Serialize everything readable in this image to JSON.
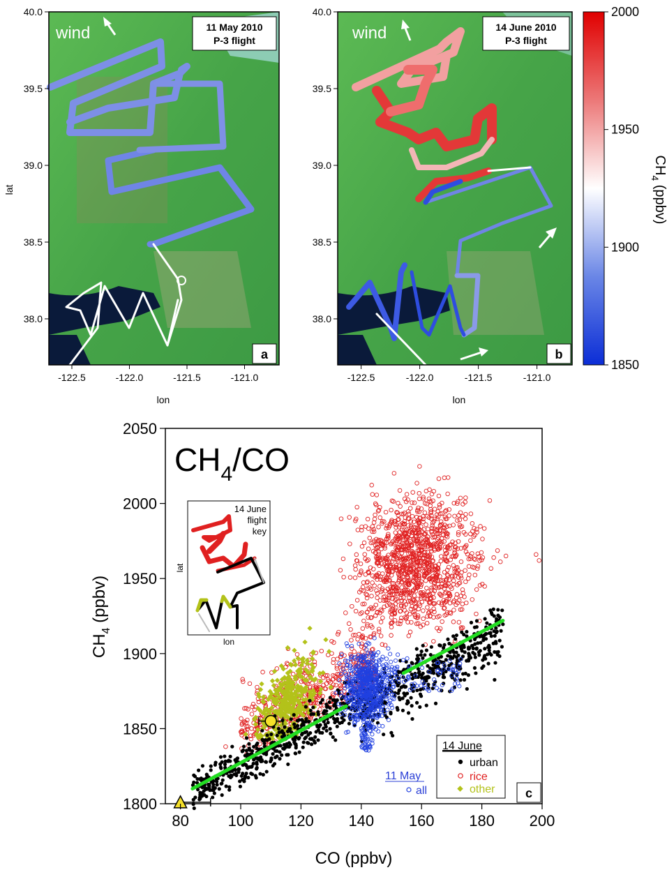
{
  "colors": {
    "ch4_scale": [
      "#0b2dd6",
      "#6a86e6",
      "#ffffff",
      "#ec7878",
      "#e00000"
    ],
    "map_green": "#4aa84a",
    "fit_line": "#22dd22",
    "urban": "#000000",
    "rice": "#e02020",
    "other": "#b3c21a",
    "all_may": "#2040e0",
    "may_legend_text": "#2a3fd6"
  },
  "panel_a": {
    "wind_label": "wind",
    "title_line1": "11 May 2010",
    "title_line2": "P-3 flight",
    "panel_letter": "a",
    "ylabel": "lat",
    "xlabel": "lon"
  },
  "panel_b": {
    "wind_label": "wind",
    "title_line1": "14 June 2010",
    "title_line2": "P-3 flight",
    "panel_letter": "b",
    "xlabel": "lon"
  },
  "colorbar": {
    "ticks": [
      "2000",
      "1950",
      "1900",
      "1850"
    ],
    "label_main": "CH",
    "label_sub": "4",
    "label_rest": " (ppbv)"
  },
  "maps_axes": {
    "yticks": [
      "40.0",
      "39.5",
      "39.0",
      "38.5",
      "38.0"
    ],
    "xticks": [
      "-122.5",
      "-122.0",
      "-121.5",
      "-121.0"
    ]
  },
  "panel_c": {
    "title_main": "CH",
    "title_sub": "4",
    "title_rest": "/CO",
    "panel_letter": "c",
    "inset": {
      "line1": "14 June",
      "line2": "flight",
      "line3": "key",
      "ylabel": "lat",
      "xlabel": "lon"
    },
    "legend_june": {
      "title": "14 June",
      "urban": "urban",
      "rice": "rice",
      "other": "other"
    },
    "legend_may": {
      "title": "11 May",
      "all": "all"
    }
  },
  "chart_data": [
    {
      "type": "scatter",
      "panel": "a",
      "xlabel": "lon",
      "ylabel": "lat",
      "xlim": [
        -122.7,
        -120.7
      ],
      "ylim": [
        37.7,
        40.0
      ],
      "xticks": [
        -122.5,
        -122.0,
        -121.5,
        -121.0
      ],
      "yticks": [
        38.0,
        38.5,
        39.0,
        39.5,
        40.0
      ]
    },
    {
      "type": "scatter",
      "panel": "b",
      "xlabel": "lon",
      "ylabel": "",
      "xlim": [
        -122.7,
        -120.7
      ],
      "ylim": [
        37.7,
        40.0
      ],
      "xticks": [
        -122.5,
        -122.0,
        -121.5,
        -121.0
      ],
      "colorbar": {
        "label": "CH4 (ppbv)",
        "range": [
          1850,
          2000
        ],
        "ticks": [
          1850,
          1900,
          1950,
          2000
        ]
      }
    },
    {
      "type": "scatter",
      "panel": "c",
      "title": "CH4/CO",
      "xlabel": "CO (ppbv)",
      "ylabel": "CH4 (ppbv)",
      "xlim": [
        75,
        200
      ],
      "ylim": [
        1800,
        2050
      ],
      "xticks": [
        80,
        100,
        120,
        140,
        160,
        180,
        200
      ],
      "yticks": [
        1800,
        1850,
        1900,
        1950,
        2000,
        2050
      ],
      "series": [
        {
          "name": "urban",
          "approx_region": {
            "x": [
              84,
              187
            ],
            "y": [
              1805,
              1922
            ]
          }
        },
        {
          "name": "rice",
          "approx_region": {
            "x": [
              95,
              199
            ],
            "y": [
              1820,
              2025
            ]
          }
        },
        {
          "name": "other",
          "approx_region": {
            "x": [
              108,
              138
            ],
            "y": [
              1845,
              1935
            ]
          }
        },
        {
          "name": "all",
          "approx_region": {
            "x": [
              135,
              175
            ],
            "y": [
              1835,
              1930
            ]
          }
        }
      ],
      "fit_lines": [
        {
          "x": [
            84,
            135
          ],
          "y": [
            1810,
            1865
          ]
        },
        {
          "x": [
            154,
            187
          ],
          "y": [
            1887,
            1922
          ]
        }
      ],
      "markers": [
        {
          "shape": "circle",
          "x": 110,
          "y": 1855,
          "x_err": [
            106,
            114
          ]
        },
        {
          "shape": "triangle",
          "x": 80,
          "y": 1801,
          "x_err": [
            80,
            90
          ]
        }
      ]
    }
  ]
}
